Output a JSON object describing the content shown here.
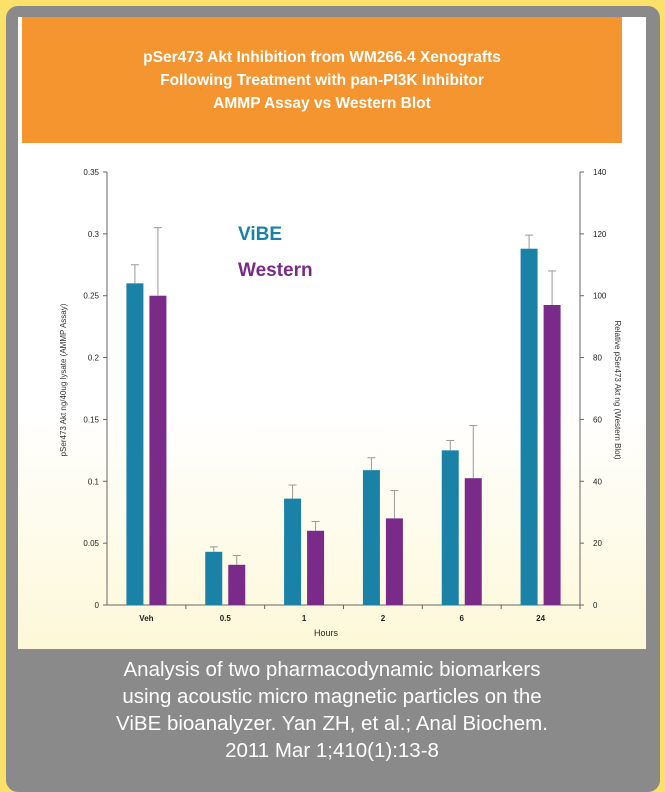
{
  "banner": {
    "line1": "pSer473 Akt Inhibition from WM266.4 Xenografts",
    "line2": "Following Treatment with pan-PI3K Inhibitor",
    "line3": "AMMP Assay vs Western Blot"
  },
  "caption": {
    "line1": "Analysis of two pharmacodynamic biomarkers",
    "line2": "using acoustic micro magnetic particles on the",
    "line3": "ViBE bioanalyzer. Yan ZH, et al.; Anal Biochem.",
    "line4": "2011 Mar 1;410(1):13-8"
  },
  "chart_data": {
    "type": "bar",
    "title": "pSer473 Akt Inhibition from WM266.4 Xenografts Following Treatment with pan-PI3K Inhibitor AMMP Assay vs Western Blot",
    "xlabel": "Hours",
    "ylabel_left": "pSer473 Akt ng/40ug lysate (AMMP Assay)",
    "ylabel_right": "Relative pSer473 Akt ng (Western Blot)",
    "categories": [
      "Veh",
      "0.5",
      "1",
      "2",
      "6",
      "24"
    ],
    "ylim_left": [
      0,
      0.35
    ],
    "ylim_right": [
      0,
      140
    ],
    "yticks_left": [
      "0",
      "0.05",
      "0.1",
      "0.15",
      "0.2",
      "0.25",
      "0.3",
      "0.35"
    ],
    "yticks_right": [
      "0",
      "20",
      "40",
      "60",
      "80",
      "100",
      "120",
      "140"
    ],
    "legend_position": "top-left inside plot",
    "series": [
      {
        "name": "ViBE",
        "axis": "left",
        "color": "#1a82a6",
        "values": [
          0.26,
          0.043,
          0.086,
          0.109,
          0.125,
          0.288
        ],
        "errors": [
          0.015,
          0.004,
          0.011,
          0.01,
          0.008,
          0.011
        ]
      },
      {
        "name": "Western",
        "axis": "right",
        "color": "#7a2a88",
        "values": [
          100,
          13,
          24,
          28,
          41,
          97
        ],
        "errors": [
          22,
          3,
          3,
          9,
          17,
          11
        ]
      }
    ]
  }
}
